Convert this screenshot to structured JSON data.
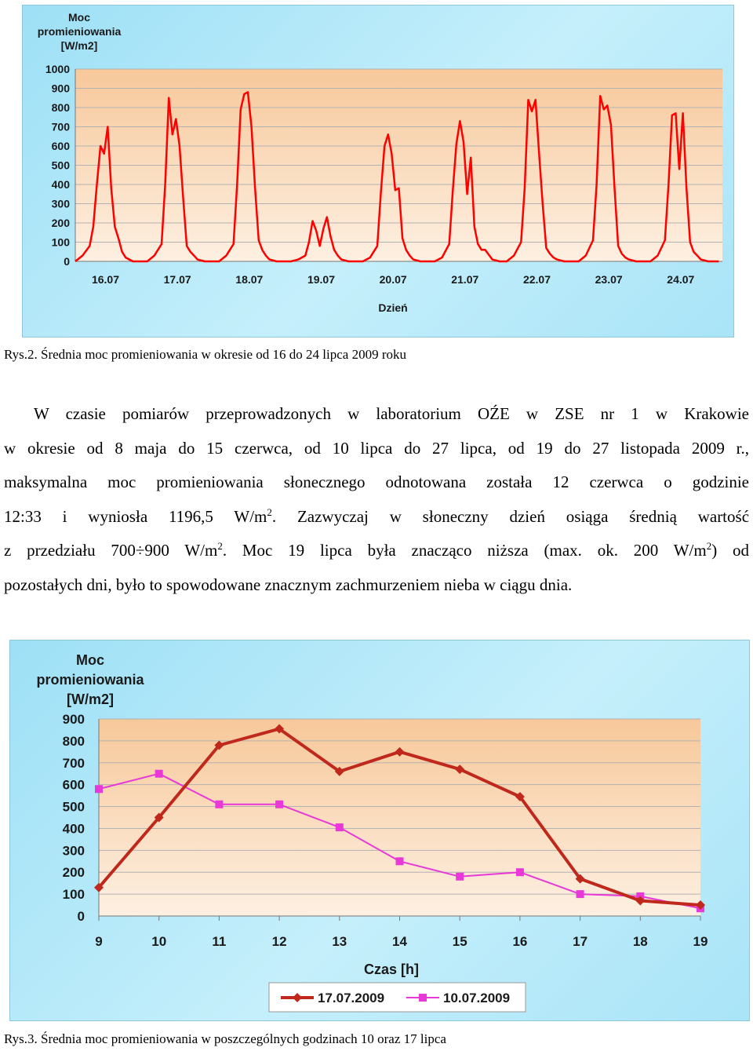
{
  "chart_data": [
    {
      "type": "line",
      "ylabel_lines": [
        "Moc",
        "promieniowania",
        "[W/m2]"
      ],
      "xlabel": "Dzień",
      "ylim": [
        0,
        1000
      ],
      "yticks": [
        0,
        100,
        200,
        300,
        400,
        500,
        600,
        700,
        800,
        900,
        1000
      ],
      "x_tick_labels": [
        "16.07",
        "17.07",
        "18.07",
        "19.07",
        "20.07",
        "21.07",
        "22.07",
        "23.07",
        "24.07"
      ],
      "grid": true,
      "series": [
        {
          "color": "#ff0000",
          "x": [
            0,
            0.1,
            0.2,
            0.25,
            0.3,
            0.35,
            0.4,
            0.45,
            0.5,
            0.55,
            0.6,
            0.65,
            0.7,
            0.8,
            0.9,
            1.0,
            1.0,
            1.1,
            1.2,
            1.25,
            1.3,
            1.35,
            1.4,
            1.45,
            1.5,
            1.55,
            1.6,
            1.65,
            1.7,
            1.8,
            1.9,
            2.0,
            2.0,
            2.1,
            2.2,
            2.25,
            2.3,
            2.35,
            2.4,
            2.45,
            2.5,
            2.55,
            2.6,
            2.65,
            2.7,
            2.8,
            2.9,
            3.0,
            3.0,
            3.1,
            3.2,
            3.25,
            3.3,
            3.35,
            3.4,
            3.45,
            3.5,
            3.55,
            3.6,
            3.65,
            3.7,
            3.8,
            3.9,
            4.0,
            4.0,
            4.1,
            4.2,
            4.25,
            4.3,
            4.35,
            4.4,
            4.45,
            4.5,
            4.55,
            4.6,
            4.65,
            4.7,
            4.8,
            4.9,
            5.0,
            5.0,
            5.1,
            5.2,
            5.25,
            5.3,
            5.35,
            5.4,
            5.45,
            5.5,
            5.55,
            5.6,
            5.65,
            5.7,
            5.8,
            5.9,
            6.0,
            6.0,
            6.1,
            6.2,
            6.25,
            6.3,
            6.35,
            6.4,
            6.45,
            6.5,
            6.55,
            6.6,
            6.65,
            6.7,
            6.8,
            6.9,
            7.0,
            7.0,
            7.1,
            7.2,
            7.25,
            7.3,
            7.35,
            7.4,
            7.45,
            7.5,
            7.55,
            7.6,
            7.65,
            7.7,
            7.8,
            7.9,
            8.0,
            8.0,
            8.1,
            8.2,
            8.25,
            8.3,
            8.35,
            8.4,
            8.45,
            8.5,
            8.55,
            8.6,
            8.65,
            8.7,
            8.8,
            8.9,
            8.95
          ],
          "values": [
            0,
            30,
            80,
            180,
            400,
            600,
            560,
            700,
            380,
            180,
            120,
            50,
            20,
            0,
            0,
            0,
            0,
            30,
            90,
            400,
            850,
            660,
            740,
            600,
            330,
            80,
            50,
            30,
            10,
            0,
            0,
            0,
            0,
            30,
            90,
            400,
            790,
            870,
            880,
            700,
            380,
            110,
            60,
            30,
            10,
            0,
            0,
            0,
            0,
            10,
            30,
            100,
            210,
            160,
            80,
            170,
            230,
            130,
            60,
            30,
            10,
            0,
            0,
            0,
            0,
            20,
            80,
            360,
            600,
            660,
            560,
            370,
            380,
            120,
            60,
            30,
            10,
            0,
            0,
            0,
            0,
            20,
            90,
            370,
            610,
            730,
            620,
            350,
            540,
            180,
            90,
            60,
            60,
            10,
            0,
            0,
            0,
            30,
            100,
            380,
            840,
            780,
            840,
            560,
            300,
            70,
            40,
            20,
            10,
            0,
            0,
            0,
            0,
            30,
            110,
            400,
            860,
            790,
            810,
            710,
            380,
            80,
            40,
            20,
            10,
            0,
            0,
            0,
            0,
            30,
            110,
            400,
            760,
            770,
            480,
            770,
            380,
            100,
            50,
            30,
            10,
            0,
            0,
            0
          ]
        }
      ]
    },
    {
      "type": "line",
      "ylabel_lines": [
        "Moc",
        "promieniowania",
        "[W/m2]"
      ],
      "xlabel": "Czas [h]",
      "ylim": [
        0,
        900
      ],
      "yticks": [
        0,
        100,
        200,
        300,
        400,
        500,
        600,
        700,
        800,
        900
      ],
      "categories": [
        9,
        10,
        11,
        12,
        13,
        14,
        15,
        16,
        17,
        18,
        19
      ],
      "grid": true,
      "legend": "bottom",
      "series": [
        {
          "name": "17.07.2009",
          "color": "#c0281c",
          "marker": "diamond",
          "values": [
            130,
            450,
            780,
            855,
            660,
            750,
            670,
            545,
            170,
            70,
            50
          ]
        },
        {
          "name": "10.07.2009",
          "color": "#e838d8",
          "marker": "square",
          "values": [
            580,
            650,
            510,
            510,
            405,
            250,
            180,
            200,
            100,
            90,
            35
          ]
        }
      ]
    }
  ],
  "captions": {
    "fig2": "Rys.2. Średnia  moc promieniowania w okresie od 16 do 24 lipca 2009 roku",
    "fig3": "Rys.3. Średnia moc promieniowania w poszczególnych godzinach 10 oraz 17 lipca"
  },
  "paragraph": {
    "l1": "W czasie pomiarów przeprowadzonych w laboratorium OŹE w ZSE nr 1 w Krakowie",
    "l2": "w okresie od 8 maja do 15 czerwca, od 10 lipca do 27 lipca, od 19 do 27 listopada 2009 r.,",
    "l3": "maksymalna moc promieniowania słonecznego odnotowana została 12 czerwca o godzinie",
    "l4a": "12:33  i wyniosła  1196,5  W/m",
    "l4b": ". Zazwyczaj  w  słoneczny  dzień  osiąga  średnią  wartość",
    "l5a": "z  przedziału  700",
    "l5div": "÷",
    "l5b": "900  W/m",
    "l5c": ".  Moc  19  lipca  była  znacząco  niższa  (max.  ok.  200  W/m",
    "l5d": ")  od",
    "l6": "pozostałych dni, było to spowodowane znacznym zachmurzeniem nieba w ciągu dnia.",
    "sup": "2"
  }
}
